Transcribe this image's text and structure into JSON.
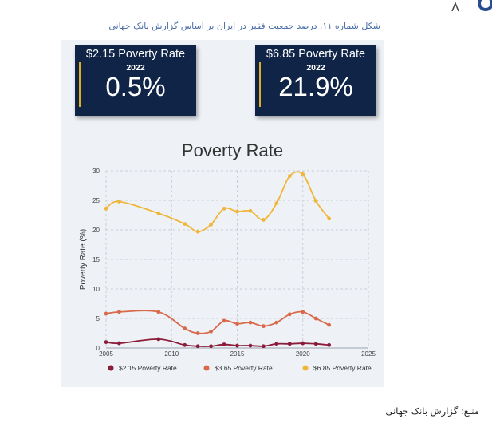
{
  "caption": "شکل شماره ۱۱. درصد جمعیت فقیر در ایران بر اساس گزارش بانک جهانی",
  "cards": [
    {
      "title": "$2.15 Poverty Rate",
      "year": "2022",
      "value": "0.5%"
    },
    {
      "title": "$6.85 Poverty Rate",
      "year": "2022",
      "value": "21.9%"
    }
  ],
  "source": "منبع: گزارش بانک جهانی",
  "colors": {
    "card_bg": "#0f2447",
    "accent": "#e1ad21",
    "panel_bg": "#eef2f6"
  },
  "chart_data": {
    "type": "line",
    "title": "Poverty Rate",
    "xlabel": "",
    "ylabel": "Poverty Rate (%)",
    "xlim": [
      2005,
      2025
    ],
    "ylim": [
      0,
      30
    ],
    "x_ticks": [
      2005,
      2010,
      2015,
      2020,
      2025
    ],
    "y_ticks": [
      0,
      5,
      10,
      15,
      20,
      25,
      30
    ],
    "grid": true,
    "legend_position": "bottom",
    "series": [
      {
        "name": "$2.15 Poverty Rate",
        "color": "#8b1c3a",
        "x": [
          2005,
          2006,
          2009,
          2011,
          2012,
          2013,
          2014,
          2015,
          2016,
          2017,
          2018,
          2019,
          2020,
          2021,
          2022
        ],
        "y": [
          1.0,
          0.8,
          1.5,
          0.5,
          0.3,
          0.3,
          0.6,
          0.4,
          0.4,
          0.3,
          0.7,
          0.7,
          0.8,
          0.7,
          0.5
        ]
      },
      {
        "name": "$3.65 Poverty Rate",
        "color": "#d9694a",
        "x": [
          2005,
          2006,
          2009,
          2011,
          2012,
          2013,
          2014,
          2015,
          2016,
          2017,
          2018,
          2019,
          2020,
          2021,
          2022
        ],
        "y": [
          5.8,
          6.1,
          6.1,
          3.3,
          2.5,
          2.8,
          4.6,
          4.1,
          4.3,
          3.7,
          4.3,
          5.7,
          6.1,
          5.0,
          3.9
        ]
      },
      {
        "name": "$6.85 Poverty Rate",
        "color": "#f0b63a",
        "x": [
          2005,
          2006,
          2009,
          2011,
          2012,
          2013,
          2014,
          2015,
          2016,
          2017,
          2018,
          2019,
          2020,
          2021,
          2022
        ],
        "y": [
          23.6,
          24.8,
          22.8,
          21.0,
          19.7,
          20.9,
          23.6,
          23.1,
          23.2,
          21.7,
          24.5,
          29.1,
          29.4,
          24.9,
          21.9
        ]
      }
    ]
  }
}
